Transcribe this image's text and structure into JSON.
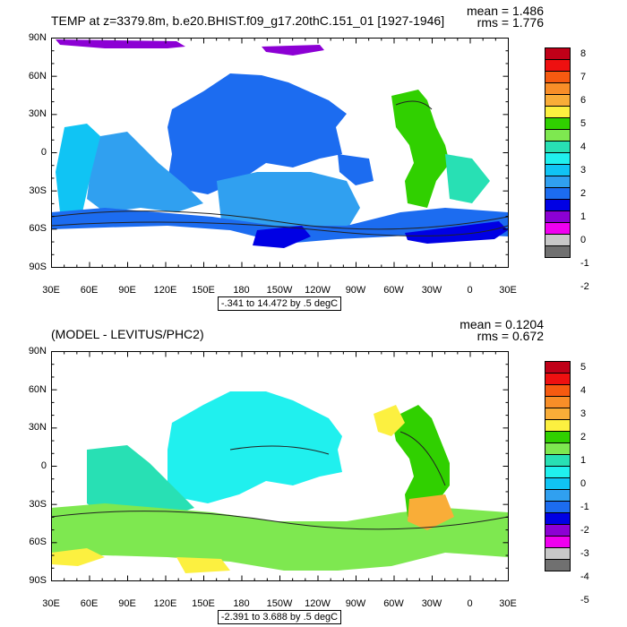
{
  "colors": {
    "land": "#ffffff",
    "frame": "#000000",
    "contour": "#222222"
  },
  "top_panel": {
    "title": "TEMP at z=3379.8m, b.e20.BHIST.f09_g17.20thC.151_01 [1927-1946]",
    "mean_text": "mean = 1.486",
    "rms_text": "rms = 1.776",
    "range_text": "-.341 to 14.472 by .5 degC",
    "lat_labels": [
      "90N",
      "60N",
      "30N",
      "0",
      "30S",
      "60S",
      "90S"
    ],
    "lon_labels": [
      "30E",
      "60E",
      "90E",
      "120E",
      "150E",
      "180",
      "150W",
      "120W",
      "90W",
      "60W",
      "30W",
      "0",
      "30E"
    ],
    "colorbar_labels": [
      "8",
      "7",
      "6",
      "5",
      "4",
      "3",
      "2",
      "1",
      "0",
      "-1",
      "-2"
    ],
    "colorbar_colors": [
      "#c00018",
      "#ee1010",
      "#f65a10",
      "#f88e28",
      "#f9ad38",
      "#fcf040",
      "#30d000",
      "#7ee850",
      "#28e0b4",
      "#20f0ee",
      "#10c4f4",
      "#30a0f0",
      "#1c6cf0",
      "#0000e4",
      "#8c00d4",
      "#f000f0",
      "#c8c8c8",
      "#707070"
    ]
  },
  "bottom_panel": {
    "title": "(MODEL - LEVITUS/PHC2)",
    "mean_text": "mean = 0.1204",
    "rms_text": "rms = 0.672",
    "range_text": "-2.391 to 3.688 by .5 degC",
    "lat_labels": [
      "90N",
      "60N",
      "30N",
      "0",
      "30S",
      "60S",
      "90S"
    ],
    "lon_labels": [
      "30E",
      "60E",
      "90E",
      "120E",
      "150E",
      "180",
      "150W",
      "120W",
      "90W",
      "60W",
      "30W",
      "0",
      "30E"
    ],
    "colorbar_labels": [
      "5",
      "4",
      "3",
      "2",
      "1",
      "0",
      "-1",
      "-2",
      "-3",
      "-4",
      "-5"
    ],
    "colorbar_colors": [
      "#c00018",
      "#ee1010",
      "#f65a10",
      "#f88e28",
      "#f9ad38",
      "#fcf040",
      "#30d000",
      "#7ee850",
      "#28e0b4",
      "#20f0ee",
      "#10c4f4",
      "#30a0f0",
      "#1c6cf0",
      "#0000e4",
      "#8c00d4",
      "#f000f0",
      "#c8c8c8",
      "#707070"
    ]
  }
}
